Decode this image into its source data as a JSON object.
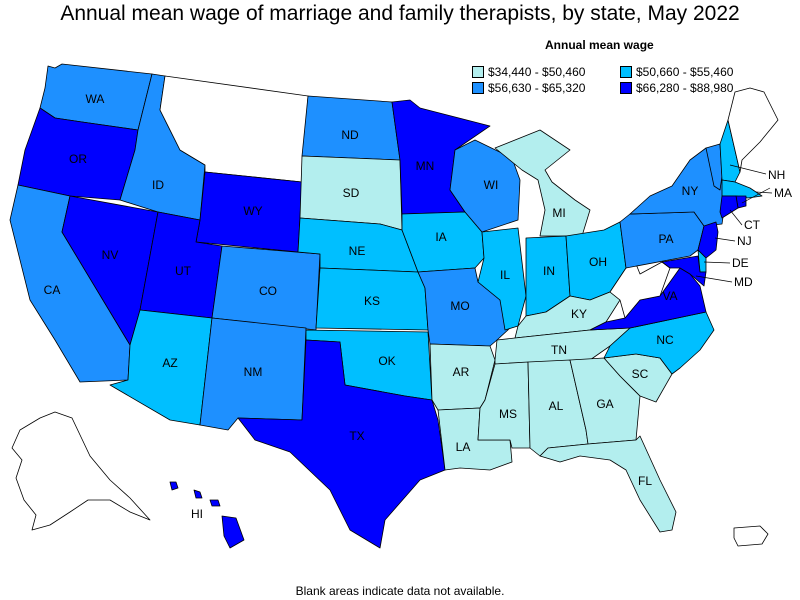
{
  "title": "Annual mean wage of marriage and family therapists, by state, May 2022",
  "legend": {
    "title": "Annual mean wage",
    "bins": [
      {
        "label": "$34,440 - $50,460",
        "color": "#b3eeee"
      },
      {
        "label": "$50,660 - $55,460",
        "color": "#00bfff"
      },
      {
        "label": "$56,630 - $65,320",
        "color": "#1e90ff"
      },
      {
        "label": "$66,280 - $88,980",
        "color": "#0000ff"
      }
    ],
    "no_data_color": "#ffffff"
  },
  "footnote": "Blank areas indicate data not available.",
  "states": {
    "WA": 3,
    "OR": 4,
    "CA": 3,
    "NV": 4,
    "ID": 3,
    "MT": 0,
    "WY": 4,
    "UT": 4,
    "AZ": 2,
    "CO": 3,
    "NM": 3,
    "ND": 3,
    "SD": 1,
    "NE": 2,
    "KS": 2,
    "OK": 2,
    "TX": 4,
    "MN": 4,
    "IA": 2,
    "MO": 3,
    "AR": 1,
    "LA": 1,
    "WI": 3,
    "IL": 2,
    "MI": 1,
    "IN": 2,
    "OH": 2,
    "KY": 1,
    "TN": 1,
    "MS": 1,
    "AL": 1,
    "GA": 1,
    "FL": 1,
    "SC": 1,
    "NC": 2,
    "VA": 4,
    "WV": 0,
    "PA": 3,
    "NY": 3,
    "VT": 3,
    "NH": 2,
    "ME": 0,
    "MA": 2,
    "RI": 4,
    "CT": 4,
    "NJ": 4,
    "DE": 2,
    "MD": 4,
    "AK": 0,
    "HI": 4,
    "PR": 0
  }
}
